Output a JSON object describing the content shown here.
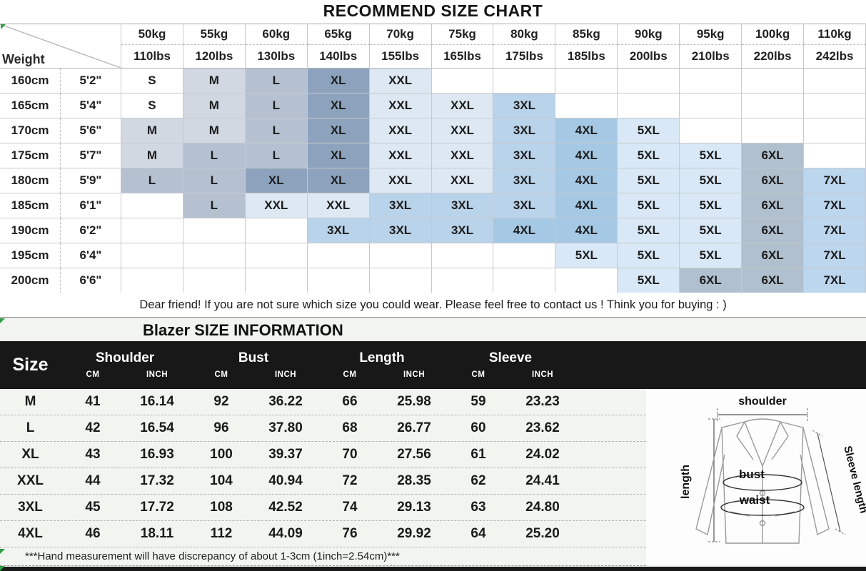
{
  "title": "RECOMMEND SIZE CHART",
  "size_chart": {
    "corner_label": "Weight",
    "weights": [
      {
        "kg": "50kg",
        "lbs": "110lbs"
      },
      {
        "kg": "55kg",
        "lbs": "120lbs"
      },
      {
        "kg": "60kg",
        "lbs": "130lbs"
      },
      {
        "kg": "65kg",
        "lbs": "140lbs"
      },
      {
        "kg": "70kg",
        "lbs": "155lbs"
      },
      {
        "kg": "75kg",
        "lbs": "165lbs"
      },
      {
        "kg": "80kg",
        "lbs": "175lbs"
      },
      {
        "kg": "85kg",
        "lbs": "185lbs"
      },
      {
        "kg": "90kg",
        "lbs": "200lbs"
      },
      {
        "kg": "95kg",
        "lbs": "210lbs"
      },
      {
        "kg": "100kg",
        "lbs": "220lbs"
      },
      {
        "kg": "110kg",
        "lbs": "242lbs"
      }
    ],
    "rows": [
      {
        "cm": "160cm",
        "ft": "5'2\"",
        "cells": [
          "S",
          "M",
          "L",
          "XL",
          "XXL",
          "",
          "",
          "",
          "",
          "",
          "",
          ""
        ]
      },
      {
        "cm": "165cm",
        "ft": "5'4\"",
        "cells": [
          "S",
          "M",
          "L",
          "XL",
          "XXL",
          "XXL",
          "3XL",
          "",
          "",
          "",
          "",
          ""
        ]
      },
      {
        "cm": "170cm",
        "ft": "5'6\"",
        "cells": [
          "M",
          "M",
          "L",
          "XL",
          "XXL",
          "XXL",
          "3XL",
          "4XL",
          "5XL",
          "",
          "",
          ""
        ]
      },
      {
        "cm": "175cm",
        "ft": "5'7\"",
        "cells": [
          "M",
          "L",
          "L",
          "XL",
          "XXL",
          "XXL",
          "3XL",
          "4XL",
          "5XL",
          "5XL",
          "6XL",
          ""
        ]
      },
      {
        "cm": "180cm",
        "ft": "5'9\"",
        "cells": [
          "L",
          "L",
          "XL",
          "XL",
          "XXL",
          "XXL",
          "3XL",
          "4XL",
          "5XL",
          "5XL",
          "6XL",
          "7XL"
        ]
      },
      {
        "cm": "185cm",
        "ft": "6'1\"",
        "cells": [
          "",
          "L",
          "XXL",
          "XXL",
          "3XL",
          "3XL",
          "3XL",
          "4XL",
          "5XL",
          "5XL",
          "6XL",
          "7XL"
        ]
      },
      {
        "cm": "190cm",
        "ft": "6'2\"",
        "cells": [
          "",
          "",
          "",
          "3XL",
          "3XL",
          "3XL",
          "4XL",
          "4XL",
          "5XL",
          "5XL",
          "6XL",
          "7XL"
        ]
      },
      {
        "cm": "195cm",
        "ft": "6'4\"",
        "cells": [
          "",
          "",
          "",
          "",
          "",
          "",
          "",
          "5XL",
          "5XL",
          "5XL",
          "6XL",
          "7XL"
        ]
      },
      {
        "cm": "200cm",
        "ft": "6'6\"",
        "cells": [
          "",
          "",
          "",
          "",
          "",
          "",
          "",
          "",
          "5XL",
          "6XL",
          "6XL",
          "7XL"
        ]
      }
    ],
    "size_colors": {
      "S": "#ffffff",
      "M": "#d2d8e2",
      "L": "#b5c1d1",
      "XL": "#8da3bd",
      "XXL": "#dde8f3",
      "3XL": "#b9d3ea",
      "4XL": "#a5c8e4",
      "5XL": "#d8e8f7",
      "6XL": "#b0c0cf",
      "7XL": "#bcd6ee"
    },
    "note": "Dear friend! If you are not sure which size you could wear. Please feel free to contact us ! Think you for buying  : )"
  },
  "blazer_info": {
    "title": "Blazer SIZE INFORMATION",
    "header": {
      "size_label": "Size",
      "groups": [
        "Shoulder",
        "Bust",
        "Length",
        "Sleeve"
      ],
      "cm_label": "CM",
      "inch_label": "INCH"
    },
    "rows": [
      {
        "size": "M",
        "values": [
          "41",
          "16.14",
          "92",
          "36.22",
          "66",
          "25.98",
          "59",
          "23.23"
        ]
      },
      {
        "size": "L",
        "values": [
          "42",
          "16.54",
          "96",
          "37.80",
          "68",
          "26.77",
          "60",
          "23.62"
        ]
      },
      {
        "size": "XL",
        "values": [
          "43",
          "16.93",
          "100",
          "39.37",
          "70",
          "27.56",
          "61",
          "24.02"
        ]
      },
      {
        "size": "XXL",
        "values": [
          "44",
          "17.32",
          "104",
          "40.94",
          "72",
          "28.35",
          "62",
          "24.41"
        ]
      },
      {
        "size": "3XL",
        "values": [
          "45",
          "17.72",
          "108",
          "42.52",
          "74",
          "29.13",
          "63",
          "24.80"
        ]
      },
      {
        "size": "4XL",
        "values": [
          "46",
          "18.11",
          "112",
          "44.09",
          "76",
          "29.92",
          "64",
          "25.20"
        ]
      }
    ],
    "footnote": "***Hand measurement will have discrepancy of about 1-3cm (1inch=2.54cm)***"
  },
  "diagram": {
    "shoulder": "shoulder",
    "length": "length",
    "sleeve_length": "Sleeve length",
    "bust": "bust",
    "waist": "waist"
  },
  "colors": {
    "blazer_header_bg": "#181818",
    "section_bg": "#f1f4ef",
    "artifact_green": "#2f9e44"
  }
}
